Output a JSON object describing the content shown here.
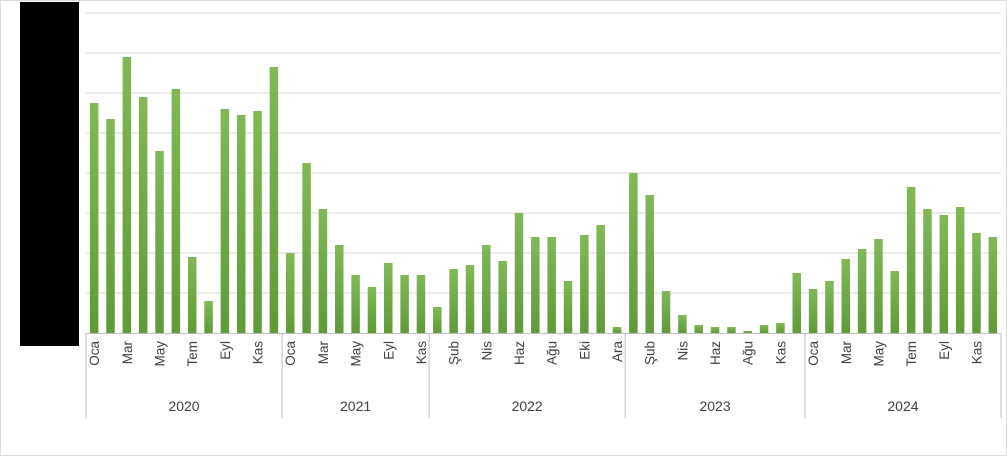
{
  "chart_data": {
    "type": "bar",
    "ylim": [
      0,
      160
    ],
    "gridlines": [
      20,
      40,
      60,
      80,
      100,
      120,
      140,
      160
    ],
    "grid": true,
    "legend": "none",
    "bar_color": "#70ad47",
    "bar_gradient_top": "#80b955",
    "bar_gradient_bottom": "#5e9b38",
    "grid_color": "#d9d9d9",
    "axis_color": "#bfbfbf",
    "label_color": "#404040",
    "years": [
      {
        "label": "2020",
        "count": 12
      },
      {
        "label": "2021",
        "count": 9
      },
      {
        "label": "2022",
        "count": 12
      },
      {
        "label": "2023",
        "count": 11
      },
      {
        "label": "2024",
        "count": 12
      }
    ],
    "months": [
      "Oca",
      "",
      "Mar",
      "",
      "May",
      "",
      "Tem",
      "",
      "Eyl",
      "",
      "Kas",
      "",
      "Oca",
      "",
      "Mar",
      "",
      "May",
      "",
      "Eyl",
      "",
      "Kas",
      "",
      "Şub",
      "",
      "Nis",
      "",
      "Haz",
      "",
      "Ağu",
      "",
      "Eki",
      "",
      "Ara",
      "",
      "Şub",
      "",
      "Nis",
      "",
      "Haz",
      "",
      "Ağu",
      "",
      "Kas",
      "",
      "Oca",
      "",
      "Mar",
      "",
      "May",
      "",
      "Tem",
      "",
      "Eyl",
      "",
      "Kas",
      ""
    ],
    "values": [
      115,
      107,
      138,
      118,
      91,
      122,
      38,
      16,
      112,
      109,
      111,
      133,
      40,
      85,
      62,
      44,
      29,
      23,
      35,
      29,
      29,
      13,
      32,
      34,
      44,
      36,
      60,
      48,
      48,
      26,
      49,
      54,
      3,
      80,
      69,
      21,
      9,
      4,
      3,
      3,
      1,
      4,
      5,
      30,
      22,
      26,
      37,
      42,
      47,
      31,
      73,
      62,
      59,
      63,
      50,
      48
    ]
  }
}
